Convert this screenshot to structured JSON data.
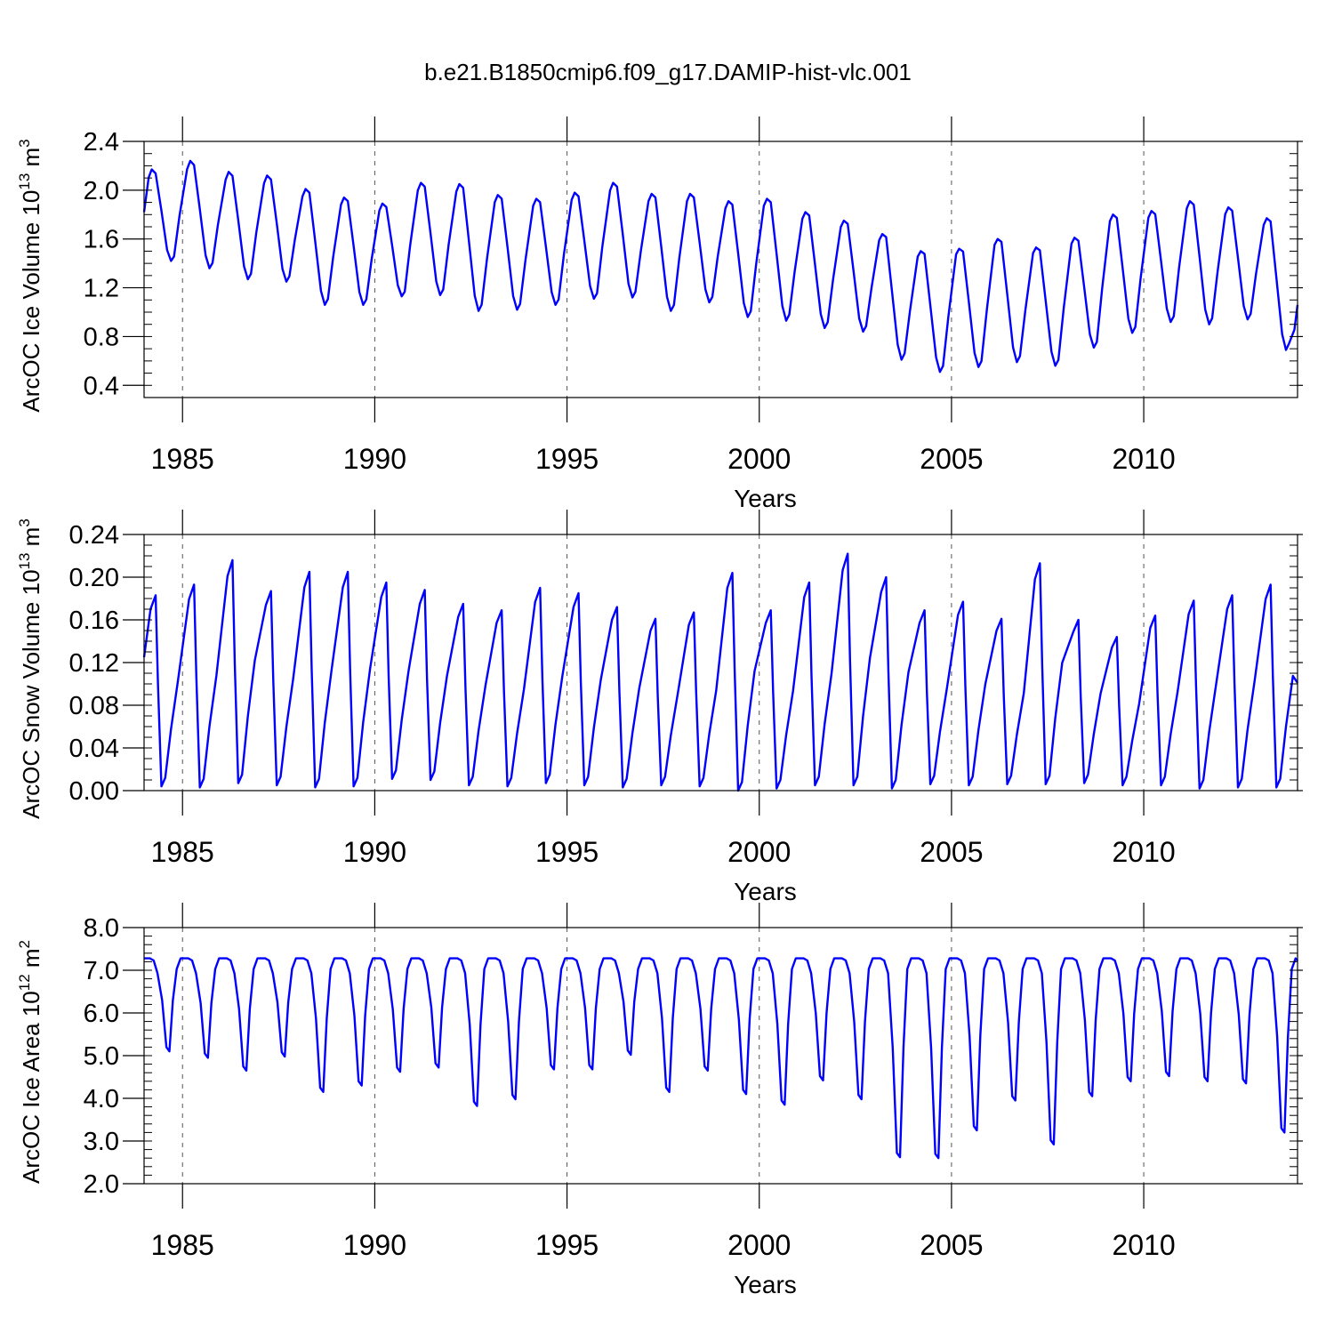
{
  "title": "b.e21.B1850cmip6.f09_g17.DAMIP-hist-vlc.001",
  "colors": {
    "series": "#0000ff",
    "axis": "#000000",
    "gridline": "#555555"
  },
  "chart_data": [
    {
      "type": "line",
      "name": "ice-volume",
      "ylabel_main": "ArcOC Ice Volume 10",
      "ylabel_exp": "13",
      "ylabel_unit": " m",
      "ylabel_unit_exp": "3",
      "xlabel": "Years",
      "xlim": [
        1984.0,
        2014.0
      ],
      "ylim": [
        0.3,
        2.4
      ],
      "yticks": [
        0.4,
        0.8,
        1.2,
        1.6,
        2.0,
        2.4
      ],
      "ytick_labels": [
        "0.4",
        "0.8",
        "1.2",
        "1.6",
        "2.0",
        "2.4"
      ],
      "ytick_minor_step": 0.1,
      "xticks": [
        1985,
        1990,
        1995,
        2000,
        2005,
        2010
      ],
      "xtick_labels": [
        "1985",
        "1990",
        "1995",
        "2000",
        "2005",
        "2010"
      ],
      "start": 1984.0,
      "start_value": 1.82,
      "end_value": 1.06,
      "cycles": [
        {
          "year": 1984,
          "max": 2.17,
          "min": 1.42
        },
        {
          "year": 1985,
          "max": 2.24,
          "min": 1.36
        },
        {
          "year": 1986,
          "max": 2.15,
          "min": 1.27
        },
        {
          "year": 1987,
          "max": 2.12,
          "min": 1.25
        },
        {
          "year": 1988,
          "max": 2.01,
          "min": 1.06
        },
        {
          "year": 1989,
          "max": 1.94,
          "min": 1.06
        },
        {
          "year": 1990,
          "max": 1.89,
          "min": 1.13
        },
        {
          "year": 1991,
          "max": 2.06,
          "min": 1.14
        },
        {
          "year": 1992,
          "max": 2.05,
          "min": 1.01
        },
        {
          "year": 1993,
          "max": 1.96,
          "min": 1.02
        },
        {
          "year": 1994,
          "max": 1.93,
          "min": 1.06
        },
        {
          "year": 1995,
          "max": 1.98,
          "min": 1.11
        },
        {
          "year": 1996,
          "max": 2.06,
          "min": 1.12
        },
        {
          "year": 1997,
          "max": 1.97,
          "min": 1.01
        },
        {
          "year": 1998,
          "max": 1.97,
          "min": 1.08
        },
        {
          "year": 1999,
          "max": 1.91,
          "min": 0.96
        },
        {
          "year": 2000,
          "max": 1.93,
          "min": 0.93
        },
        {
          "year": 2001,
          "max": 1.82,
          "min": 0.87
        },
        {
          "year": 2002,
          "max": 1.75,
          "min": 0.84
        },
        {
          "year": 2003,
          "max": 1.64,
          "min": 0.61
        },
        {
          "year": 2004,
          "max": 1.5,
          "min": 0.51
        },
        {
          "year": 2005,
          "max": 1.52,
          "min": 0.55
        },
        {
          "year": 2006,
          "max": 1.6,
          "min": 0.59
        },
        {
          "year": 2007,
          "max": 1.53,
          "min": 0.56
        },
        {
          "year": 2008,
          "max": 1.61,
          "min": 0.71
        },
        {
          "year": 2009,
          "max": 1.8,
          "min": 0.83
        },
        {
          "year": 2010,
          "max": 1.83,
          "min": 0.92
        },
        {
          "year": 2011,
          "max": 1.91,
          "min": 0.9
        },
        {
          "year": 2012,
          "max": 1.86,
          "min": 0.94
        },
        {
          "year": 2013,
          "max": 1.77,
          "min": 0.69
        }
      ]
    },
    {
      "type": "line",
      "name": "snow-volume",
      "ylabel_main": "ArcOC Snow Volume 10",
      "ylabel_exp": "13",
      "ylabel_unit": " m",
      "ylabel_unit_exp": "3",
      "xlabel": "Years",
      "xlim": [
        1984.0,
        2014.0
      ],
      "ylim": [
        0.0,
        0.24
      ],
      "yticks": [
        0.0,
        0.04,
        0.08,
        0.12,
        0.16,
        0.2,
        0.24
      ],
      "ytick_labels": [
        "0.00",
        "0.04",
        "0.08",
        "0.12",
        "0.16",
        "0.20",
        "0.24"
      ],
      "ytick_minor_step": 0.01,
      "xticks": [
        1985,
        1990,
        1995,
        2000,
        2005,
        2010
      ],
      "xtick_labels": [
        "1985",
        "1990",
        "1995",
        "2000",
        "2005",
        "2010"
      ],
      "start": 1984.0,
      "start_value": 0.125,
      "end_value": 0.101,
      "cycles": [
        {
          "year": 1984,
          "max": 0.183,
          "min": 0.004
        },
        {
          "year": 1985,
          "max": 0.193,
          "min": 0.003
        },
        {
          "year": 1986,
          "max": 0.216,
          "min": 0.007
        },
        {
          "year": 1987,
          "max": 0.187,
          "min": 0.005
        },
        {
          "year": 1988,
          "max": 0.205,
          "min": 0.003
        },
        {
          "year": 1989,
          "max": 0.205,
          "min": 0.004
        },
        {
          "year": 1990,
          "max": 0.195,
          "min": 0.011
        },
        {
          "year": 1991,
          "max": 0.188,
          "min": 0.01
        },
        {
          "year": 1992,
          "max": 0.175,
          "min": 0.005
        },
        {
          "year": 1993,
          "max": 0.169,
          "min": 0.004
        },
        {
          "year": 1994,
          "max": 0.19,
          "min": 0.007
        },
        {
          "year": 1995,
          "max": 0.185,
          "min": 0.005
        },
        {
          "year": 1996,
          "max": 0.172,
          "min": 0.003
        },
        {
          "year": 1997,
          "max": 0.161,
          "min": 0.005
        },
        {
          "year": 1998,
          "max": 0.167,
          "min": 0.004
        },
        {
          "year": 1999,
          "max": 0.204,
          "min": 0.0
        },
        {
          "year": 2000,
          "max": 0.169,
          "min": 0.002
        },
        {
          "year": 2001,
          "max": 0.195,
          "min": 0.005
        },
        {
          "year": 2002,
          "max": 0.222,
          "min": 0.005
        },
        {
          "year": 2003,
          "max": 0.2,
          "min": 0.002
        },
        {
          "year": 2004,
          "max": 0.169,
          "min": 0.006
        },
        {
          "year": 2005,
          "max": 0.177,
          "min": 0.005
        },
        {
          "year": 2006,
          "max": 0.161,
          "min": 0.006
        },
        {
          "year": 2007,
          "max": 0.213,
          "min": 0.006
        },
        {
          "year": 2008,
          "max": 0.16,
          "min": 0.007
        },
        {
          "year": 2009,
          "max": 0.144,
          "min": 0.005
        },
        {
          "year": 2010,
          "max": 0.164,
          "min": 0.005
        },
        {
          "year": 2011,
          "max": 0.178,
          "min": 0.002
        },
        {
          "year": 2012,
          "max": 0.183,
          "min": 0.003
        },
        {
          "year": 2013,
          "max": 0.193,
          "min": 0.003
        }
      ]
    },
    {
      "type": "line",
      "name": "ice-area",
      "ylabel_main": "ArcOC Ice Area 10",
      "ylabel_exp": "12",
      "ylabel_unit": " m",
      "ylabel_unit_exp": "2",
      "xlabel": "Years",
      "xlim": [
        1984.0,
        2014.0
      ],
      "ylim": [
        2.0,
        8.0
      ],
      "yticks": [
        2.0,
        3.0,
        4.0,
        5.0,
        6.0,
        7.0,
        8.0
      ],
      "ytick_labels": [
        "2.0",
        "3.0",
        "4.0",
        "5.0",
        "6.0",
        "7.0",
        "8.0"
      ],
      "ytick_minor_step": 0.2,
      "xticks": [
        1985,
        1990,
        1995,
        2000,
        2005,
        2010
      ],
      "xtick_labels": [
        "1985",
        "1990",
        "1995",
        "2000",
        "2005",
        "2010"
      ],
      "start": 1984.0,
      "start_value": 7.28,
      "end_value": 7.22,
      "cycles": [
        {
          "year": 1984,
          "max": 7.28,
          "min": 5.1
        },
        {
          "year": 1985,
          "max": 7.28,
          "min": 4.95
        },
        {
          "year": 1986,
          "max": 7.28,
          "min": 4.65
        },
        {
          "year": 1987,
          "max": 7.28,
          "min": 4.98
        },
        {
          "year": 1988,
          "max": 7.28,
          "min": 4.15
        },
        {
          "year": 1989,
          "max": 7.28,
          "min": 4.3
        },
        {
          "year": 1990,
          "max": 7.28,
          "min": 4.62
        },
        {
          "year": 1991,
          "max": 7.28,
          "min": 4.72
        },
        {
          "year": 1992,
          "max": 7.28,
          "min": 3.82
        },
        {
          "year": 1993,
          "max": 7.28,
          "min": 3.98
        },
        {
          "year": 1994,
          "max": 7.28,
          "min": 4.68
        },
        {
          "year": 1995,
          "max": 7.28,
          "min": 4.68
        },
        {
          "year": 1996,
          "max": 7.28,
          "min": 5.02
        },
        {
          "year": 1997,
          "max": 7.28,
          "min": 4.15
        },
        {
          "year": 1998,
          "max": 7.28,
          "min": 4.65
        },
        {
          "year": 1999,
          "max": 7.28,
          "min": 4.1
        },
        {
          "year": 2000,
          "max": 7.28,
          "min": 3.85
        },
        {
          "year": 2001,
          "max": 7.28,
          "min": 4.42
        },
        {
          "year": 2002,
          "max": 7.28,
          "min": 3.98
        },
        {
          "year": 2003,
          "max": 7.28,
          "min": 2.62
        },
        {
          "year": 2004,
          "max": 7.28,
          "min": 2.6
        },
        {
          "year": 2005,
          "max": 7.28,
          "min": 3.25
        },
        {
          "year": 2006,
          "max": 7.28,
          "min": 3.95
        },
        {
          "year": 2007,
          "max": 7.28,
          "min": 2.92
        },
        {
          "year": 2008,
          "max": 7.28,
          "min": 4.05
        },
        {
          "year": 2009,
          "max": 7.28,
          "min": 4.4
        },
        {
          "year": 2010,
          "max": 7.28,
          "min": 4.52
        },
        {
          "year": 2011,
          "max": 7.28,
          "min": 4.4
        },
        {
          "year": 2012,
          "max": 7.28,
          "min": 4.35
        },
        {
          "year": 2013,
          "max": 7.28,
          "min": 3.2
        }
      ]
    }
  ]
}
